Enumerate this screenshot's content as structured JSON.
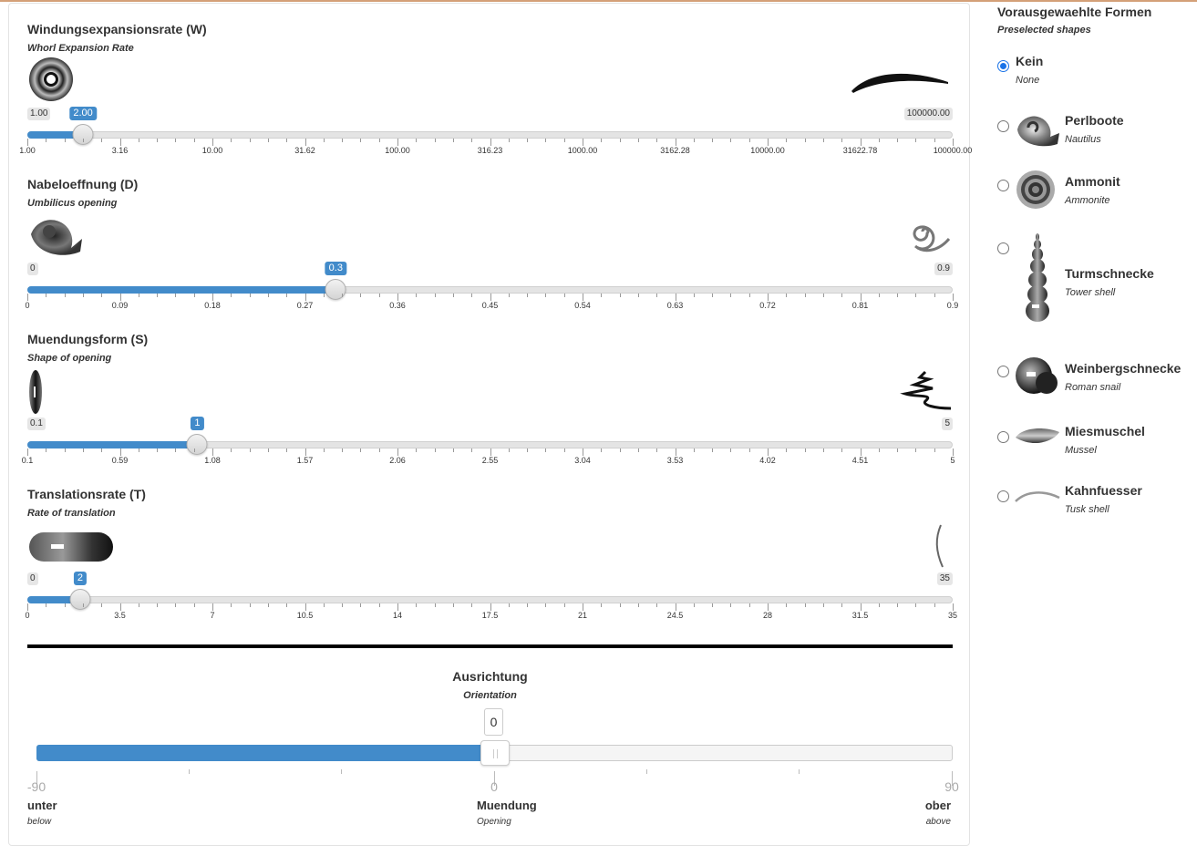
{
  "header": {
    "accent_color": "#d4a078"
  },
  "sliders": [
    {
      "title": "Windungsexpansionsrate (W)",
      "subtitle": "Whorl Expansion Rate",
      "min_label": "1.00",
      "max_label": "100000.00",
      "value_label": "2.00",
      "value_fraction": 0.0602,
      "ticks": [
        "1.00",
        "3.16",
        "10.00",
        "31.62",
        "100.00",
        "316.23",
        "1000.00",
        "3162.28",
        "10000.00",
        "31622.78",
        "100000.00"
      ],
      "left_icon": "ring-shell-icon",
      "right_icon": "tusk-shell-icon"
    },
    {
      "title": "Nabeloeffnung (D)",
      "subtitle": "Umbilicus opening",
      "min_label": "0",
      "max_label": "0.9",
      "value_label": "0.3",
      "value_fraction": 0.3333,
      "ticks": [
        "0",
        "0.09",
        "0.18",
        "0.27",
        "0.36",
        "0.45",
        "0.54",
        "0.63",
        "0.72",
        "0.81",
        "0.9"
      ],
      "left_icon": "nautilus-shell-icon",
      "right_icon": "open-spiral-icon"
    },
    {
      "title": "Muendungsform (S)",
      "subtitle": "Shape of opening",
      "min_label": "0.1",
      "max_label": "5",
      "value_label": "1",
      "value_fraction": 0.1837,
      "ticks": [
        "0.1",
        "0.59",
        "1.08",
        "1.57",
        "2.06",
        "2.55",
        "3.04",
        "3.53",
        "4.02",
        "4.51",
        "5"
      ],
      "left_icon": "flat-disc-icon",
      "right_icon": "ribbon-shell-icon"
    },
    {
      "title": "Translationsrate (T)",
      "subtitle": "Rate of translation",
      "min_label": "0",
      "max_label": "35",
      "value_label": "2",
      "value_fraction": 0.0571,
      "ticks": [
        "0",
        "3.5",
        "7",
        "10.5",
        "14",
        "17.5",
        "21",
        "24.5",
        "28",
        "31.5",
        "35"
      ],
      "left_icon": "capsule-shell-icon",
      "right_icon": "thin-curve-icon"
    }
  ],
  "orientation": {
    "title": "Ausrichtung",
    "subtitle": "Orientation",
    "value": "0",
    "value_fraction": 0.5,
    "min": "-90",
    "mid": "0",
    "max": "90",
    "left_label": "unter",
    "left_sub": "below",
    "mid_label": "Muendung",
    "mid_sub": "Opening",
    "right_label": "ober",
    "right_sub": "above"
  },
  "presets": {
    "title": "Vorausgewaehlte Formen",
    "subtitle": "Preselected shapes",
    "options": [
      {
        "name": "Kein",
        "english": "None",
        "checked": true,
        "icon": ""
      },
      {
        "name": "Perlboote",
        "english": "Nautilus",
        "checked": false,
        "icon": "nautilus-icon"
      },
      {
        "name": "Ammonit",
        "english": "Ammonite",
        "checked": false,
        "icon": "ammonite-icon"
      },
      {
        "name": "Turmschnecke",
        "english": "Tower shell",
        "checked": false,
        "icon": "tower-shell-icon"
      },
      {
        "name": "Weinbergschnecke",
        "english": "Roman snail",
        "checked": false,
        "icon": "roman-snail-icon"
      },
      {
        "name": "Miesmuschel",
        "english": "Mussel",
        "checked": false,
        "icon": "mussel-icon"
      },
      {
        "name": "Kahnfuesser",
        "english": "Tusk shell",
        "checked": false,
        "icon": "tusk-shell-icon"
      }
    ]
  },
  "colors": {
    "accent": "#428bca",
    "radio_checked": "#1a73e8"
  }
}
